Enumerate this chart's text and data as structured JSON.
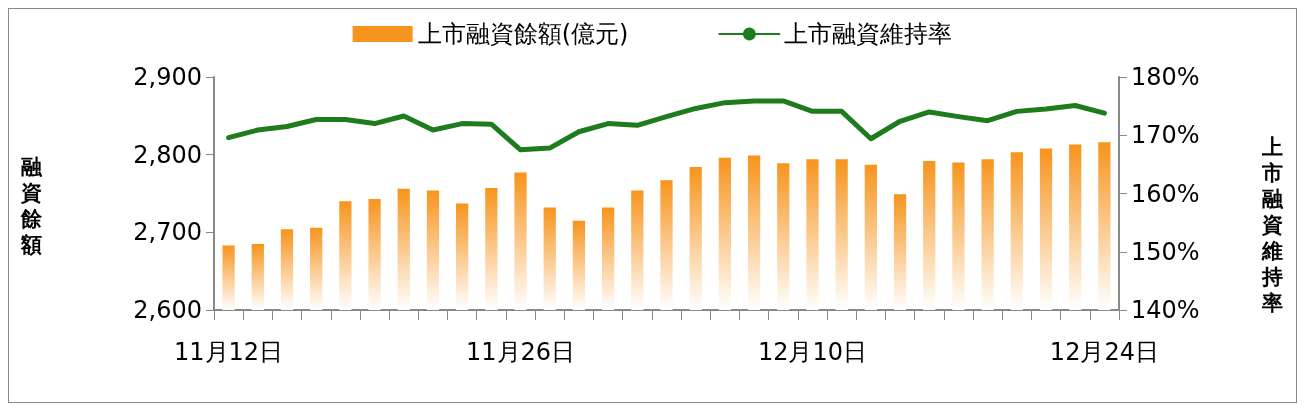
{
  "chart_data": {
    "type": "bar",
    "categories": [
      "11月12日",
      null,
      null,
      null,
      null,
      null,
      null,
      null,
      null,
      null,
      "11月26日",
      null,
      null,
      null,
      null,
      null,
      null,
      null,
      null,
      null,
      "12月10日",
      null,
      null,
      null,
      null,
      null,
      null,
      null,
      null,
      null,
      "12月24日"
    ],
    "series": [
      {
        "name": "上市融資餘額(億元)",
        "color": "#f7941d",
        "values": [
          2683,
          2685,
          2704,
          2706,
          2740,
          2743,
          2756,
          2754,
          2737,
          2757,
          2777,
          2732,
          2715,
          2732,
          2754,
          2767,
          2784,
          2796,
          2799,
          2789,
          2794,
          2794,
          2787,
          2749,
          2792,
          2790,
          2794,
          2803,
          2808,
          2813,
          2816
        ]
      },
      {
        "name": "上市融資維持率",
        "type": "line",
        "axis": "y2",
        "color": "#1e7b1e",
        "values": [
          169.6,
          170.9,
          171.5,
          172.7,
          172.7,
          172.0,
          173.3,
          170.9,
          172.0,
          171.9,
          167.5,
          167.8,
          170.6,
          172.0,
          171.7,
          173.2,
          174.6,
          175.6,
          175.9,
          175.9,
          174.1,
          174.1,
          169.4,
          172.4,
          174.0,
          173.2,
          172.5,
          174.1,
          174.5,
          175.1,
          173.8
        ]
      }
    ],
    "ylabel": "融資餘額",
    "y2label": "上市融資維持率",
    "ylim": [
      2600,
      2900
    ],
    "yticks": [
      {
        "value": 2600,
        "label": "2,600"
      },
      {
        "value": 2700,
        "label": "2,700"
      },
      {
        "value": 2800,
        "label": "2,800"
      },
      {
        "value": 2900,
        "label": "2,900"
      }
    ],
    "y2lim": [
      140,
      180
    ],
    "y2ticks": [
      {
        "value": 140,
        "label": "140%"
      },
      {
        "value": 150,
        "label": "150%"
      },
      {
        "value": 160,
        "label": "160%"
      },
      {
        "value": 170,
        "label": "170%"
      },
      {
        "value": 180,
        "label": "180%"
      }
    ],
    "legend": "top",
    "grid": false,
    "marker": "none",
    "line_style": "solid"
  }
}
